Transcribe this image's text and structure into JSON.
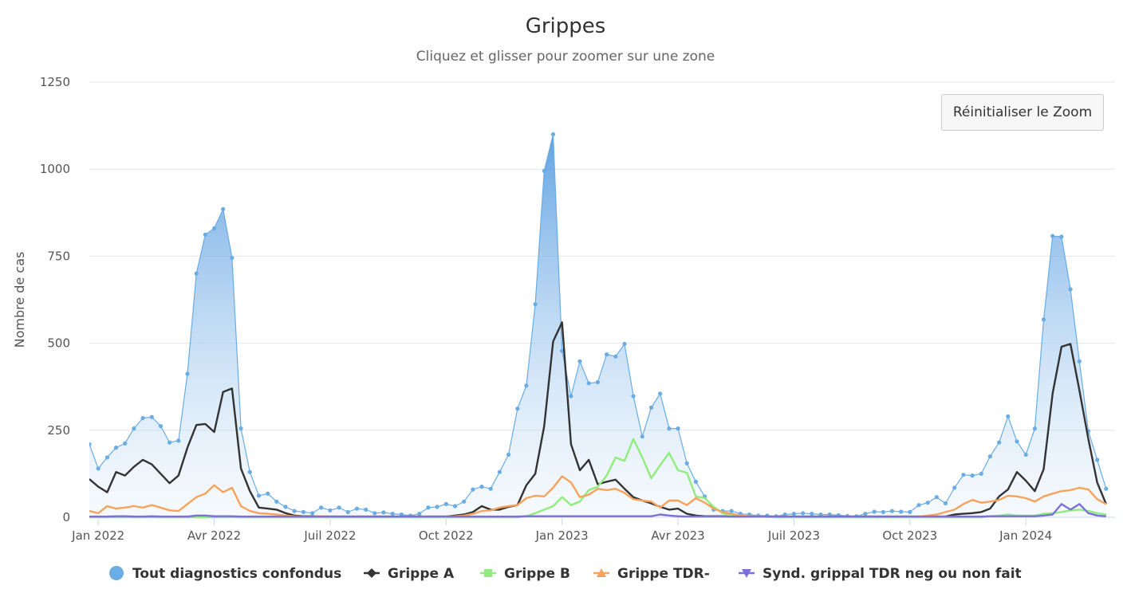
{
  "chart_data": {
    "type": "line",
    "title": "Grippes",
    "subtitle": "Cliquez et glisser pour zoomer sur une zone",
    "ylabel": "Nombre de cas",
    "xlabel": "",
    "ylim": [
      0,
      1250
    ],
    "yticks": [
      0,
      250,
      500,
      750,
      1000,
      1250
    ],
    "xlim": [
      "2021-12-27",
      "2024-03-11"
    ],
    "xticks": [
      {
        "date": "2022-01-03",
        "label": "Jan 2022"
      },
      {
        "date": "2022-04-04",
        "label": "Avr 2022"
      },
      {
        "date": "2022-07-04",
        "label": "Juil 2022"
      },
      {
        "date": "2022-10-03",
        "label": "Oct 2022"
      },
      {
        "date": "2023-01-02",
        "label": "Jan 2023"
      },
      {
        "date": "2023-04-03",
        "label": "Avr 2023"
      },
      {
        "date": "2023-07-03",
        "label": "Juil 2023"
      },
      {
        "date": "2023-10-02",
        "label": "Oct 2023"
      },
      {
        "date": "2024-01-01",
        "label": "Jan 2024"
      }
    ],
    "grid": true,
    "legend_position": "bottom",
    "start_date": "2021-12-27",
    "interval_days": 7,
    "series": [
      {
        "name": "Tout diagnostics confondus",
        "type": "area",
        "color": "#6aace4",
        "values": [
          210,
          140,
          172,
          200,
          212,
          255,
          285,
          288,
          262,
          215,
          220,
          412,
          700,
          812,
          830,
          885,
          745,
          255,
          130,
          62,
          68,
          45,
          30,
          18,
          15,
          12,
          28,
          20,
          28,
          15,
          25,
          22,
          12,
          14,
          10,
          8,
          5,
          10,
          28,
          30,
          38,
          32,
          45,
          80,
          88,
          82,
          130,
          180,
          312,
          378,
          612,
          995,
          1100,
          478,
          348,
          448,
          385,
          388,
          468,
          462,
          498,
          348,
          232,
          315,
          355,
          255,
          255,
          155,
          102,
          60,
          22,
          18,
          18,
          10,
          8,
          5,
          5,
          3,
          8,
          10,
          12,
          10,
          8,
          8,
          6,
          4,
          3,
          10,
          16,
          15,
          18,
          16,
          15,
          35,
          42,
          58,
          40,
          85,
          122,
          120,
          125,
          175,
          215,
          290,
          218,
          180,
          255,
          568,
          808,
          806,
          655,
          448,
          248,
          165,
          82
        ]
      },
      {
        "name": "Grippe A",
        "type": "line",
        "color": "#333333",
        "values": [
          110,
          88,
          72,
          130,
          120,
          145,
          165,
          152,
          125,
          98,
          120,
          200,
          265,
          268,
          245,
          360,
          370,
          140,
          75,
          28,
          25,
          22,
          12,
          5,
          3,
          3,
          2,
          2,
          2,
          2,
          2,
          2,
          2,
          2,
          2,
          2,
          2,
          2,
          2,
          2,
          2,
          5,
          8,
          15,
          32,
          22,
          22,
          30,
          35,
          92,
          125,
          262,
          505,
          560,
          210,
          135,
          165,
          95,
          102,
          108,
          82,
          58,
          48,
          40,
          30,
          22,
          25,
          10,
          5,
          3,
          3,
          3,
          2,
          2,
          2,
          2,
          2,
          2,
          2,
          2,
          2,
          2,
          2,
          2,
          2,
          2,
          2,
          2,
          2,
          2,
          2,
          2,
          2,
          2,
          2,
          2,
          2,
          8,
          10,
          12,
          15,
          25,
          60,
          80,
          130,
          105,
          75,
          138,
          355,
          490,
          498,
          365,
          225,
          100,
          38
        ]
      },
      {
        "name": "Grippe B",
        "type": "line",
        "color": "#90ed7d",
        "values": [
          0,
          0,
          0,
          0,
          0,
          0,
          0,
          0,
          0,
          0,
          0,
          0,
          0,
          0,
          0,
          0,
          0,
          0,
          0,
          0,
          0,
          0,
          0,
          0,
          0,
          0,
          0,
          0,
          0,
          0,
          0,
          0,
          0,
          0,
          0,
          0,
          0,
          0,
          0,
          0,
          0,
          0,
          0,
          0,
          0,
          0,
          0,
          0,
          0,
          3,
          12,
          22,
          32,
          58,
          35,
          45,
          78,
          88,
          120,
          172,
          162,
          225,
          172,
          112,
          150,
          185,
          135,
          128,
          60,
          55,
          30,
          12,
          5,
          3,
          2,
          2,
          1,
          0,
          0,
          0,
          0,
          0,
          0,
          0,
          0,
          0,
          0,
          0,
          0,
          0,
          0,
          0,
          0,
          0,
          0,
          0,
          0,
          0,
          0,
          0,
          0,
          3,
          5,
          8,
          5,
          5,
          5,
          10,
          12,
          15,
          20,
          22,
          18,
          12,
          8
        ]
      },
      {
        "name": "Grippe TDR-",
        "type": "line",
        "color": "#f7a35c",
        "values": [
          18,
          12,
          32,
          25,
          28,
          32,
          28,
          35,
          28,
          20,
          18,
          38,
          58,
          68,
          92,
          72,
          85,
          32,
          18,
          12,
          10,
          8,
          5,
          3,
          2,
          2,
          3,
          2,
          2,
          2,
          2,
          2,
          2,
          2,
          2,
          2,
          2,
          2,
          2,
          2,
          2,
          3,
          5,
          10,
          18,
          20,
          28,
          32,
          35,
          55,
          62,
          60,
          85,
          118,
          100,
          58,
          65,
          82,
          78,
          82,
          70,
          52,
          48,
          45,
          28,
          48,
          48,
          35,
          55,
          42,
          25,
          15,
          10,
          5,
          3,
          2,
          2,
          2,
          2,
          2,
          2,
          2,
          2,
          2,
          2,
          2,
          2,
          2,
          2,
          2,
          2,
          2,
          2,
          2,
          5,
          8,
          15,
          22,
          38,
          50,
          42,
          45,
          50,
          62,
          60,
          55,
          45,
          60,
          68,
          75,
          78,
          85,
          80,
          52,
          38
        ]
      },
      {
        "name": "Synd. grippal TDR neg ou non fait",
        "type": "line",
        "color": "#7b70d8",
        "values": [
          2,
          2,
          2,
          3,
          3,
          2,
          2,
          3,
          2,
          2,
          2,
          2,
          5,
          5,
          3,
          3,
          3,
          2,
          2,
          2,
          2,
          2,
          2,
          2,
          2,
          2,
          2,
          2,
          2,
          2,
          2,
          2,
          2,
          2,
          2,
          2,
          2,
          2,
          2,
          2,
          2,
          2,
          2,
          2,
          2,
          2,
          2,
          2,
          2,
          3,
          3,
          3,
          3,
          3,
          3,
          3,
          3,
          3,
          3,
          3,
          3,
          3,
          3,
          3,
          8,
          5,
          3,
          2,
          2,
          2,
          2,
          2,
          2,
          2,
          2,
          2,
          2,
          2,
          2,
          2,
          2,
          2,
          2,
          2,
          2,
          2,
          2,
          2,
          2,
          2,
          2,
          2,
          2,
          2,
          2,
          2,
          2,
          2,
          2,
          2,
          2,
          3,
          3,
          3,
          3,
          3,
          3,
          5,
          8,
          38,
          22,
          38,
          12,
          5,
          3
        ]
      }
    ]
  },
  "controls": {
    "reset_zoom_label": "Réinitialiser le Zoom"
  }
}
